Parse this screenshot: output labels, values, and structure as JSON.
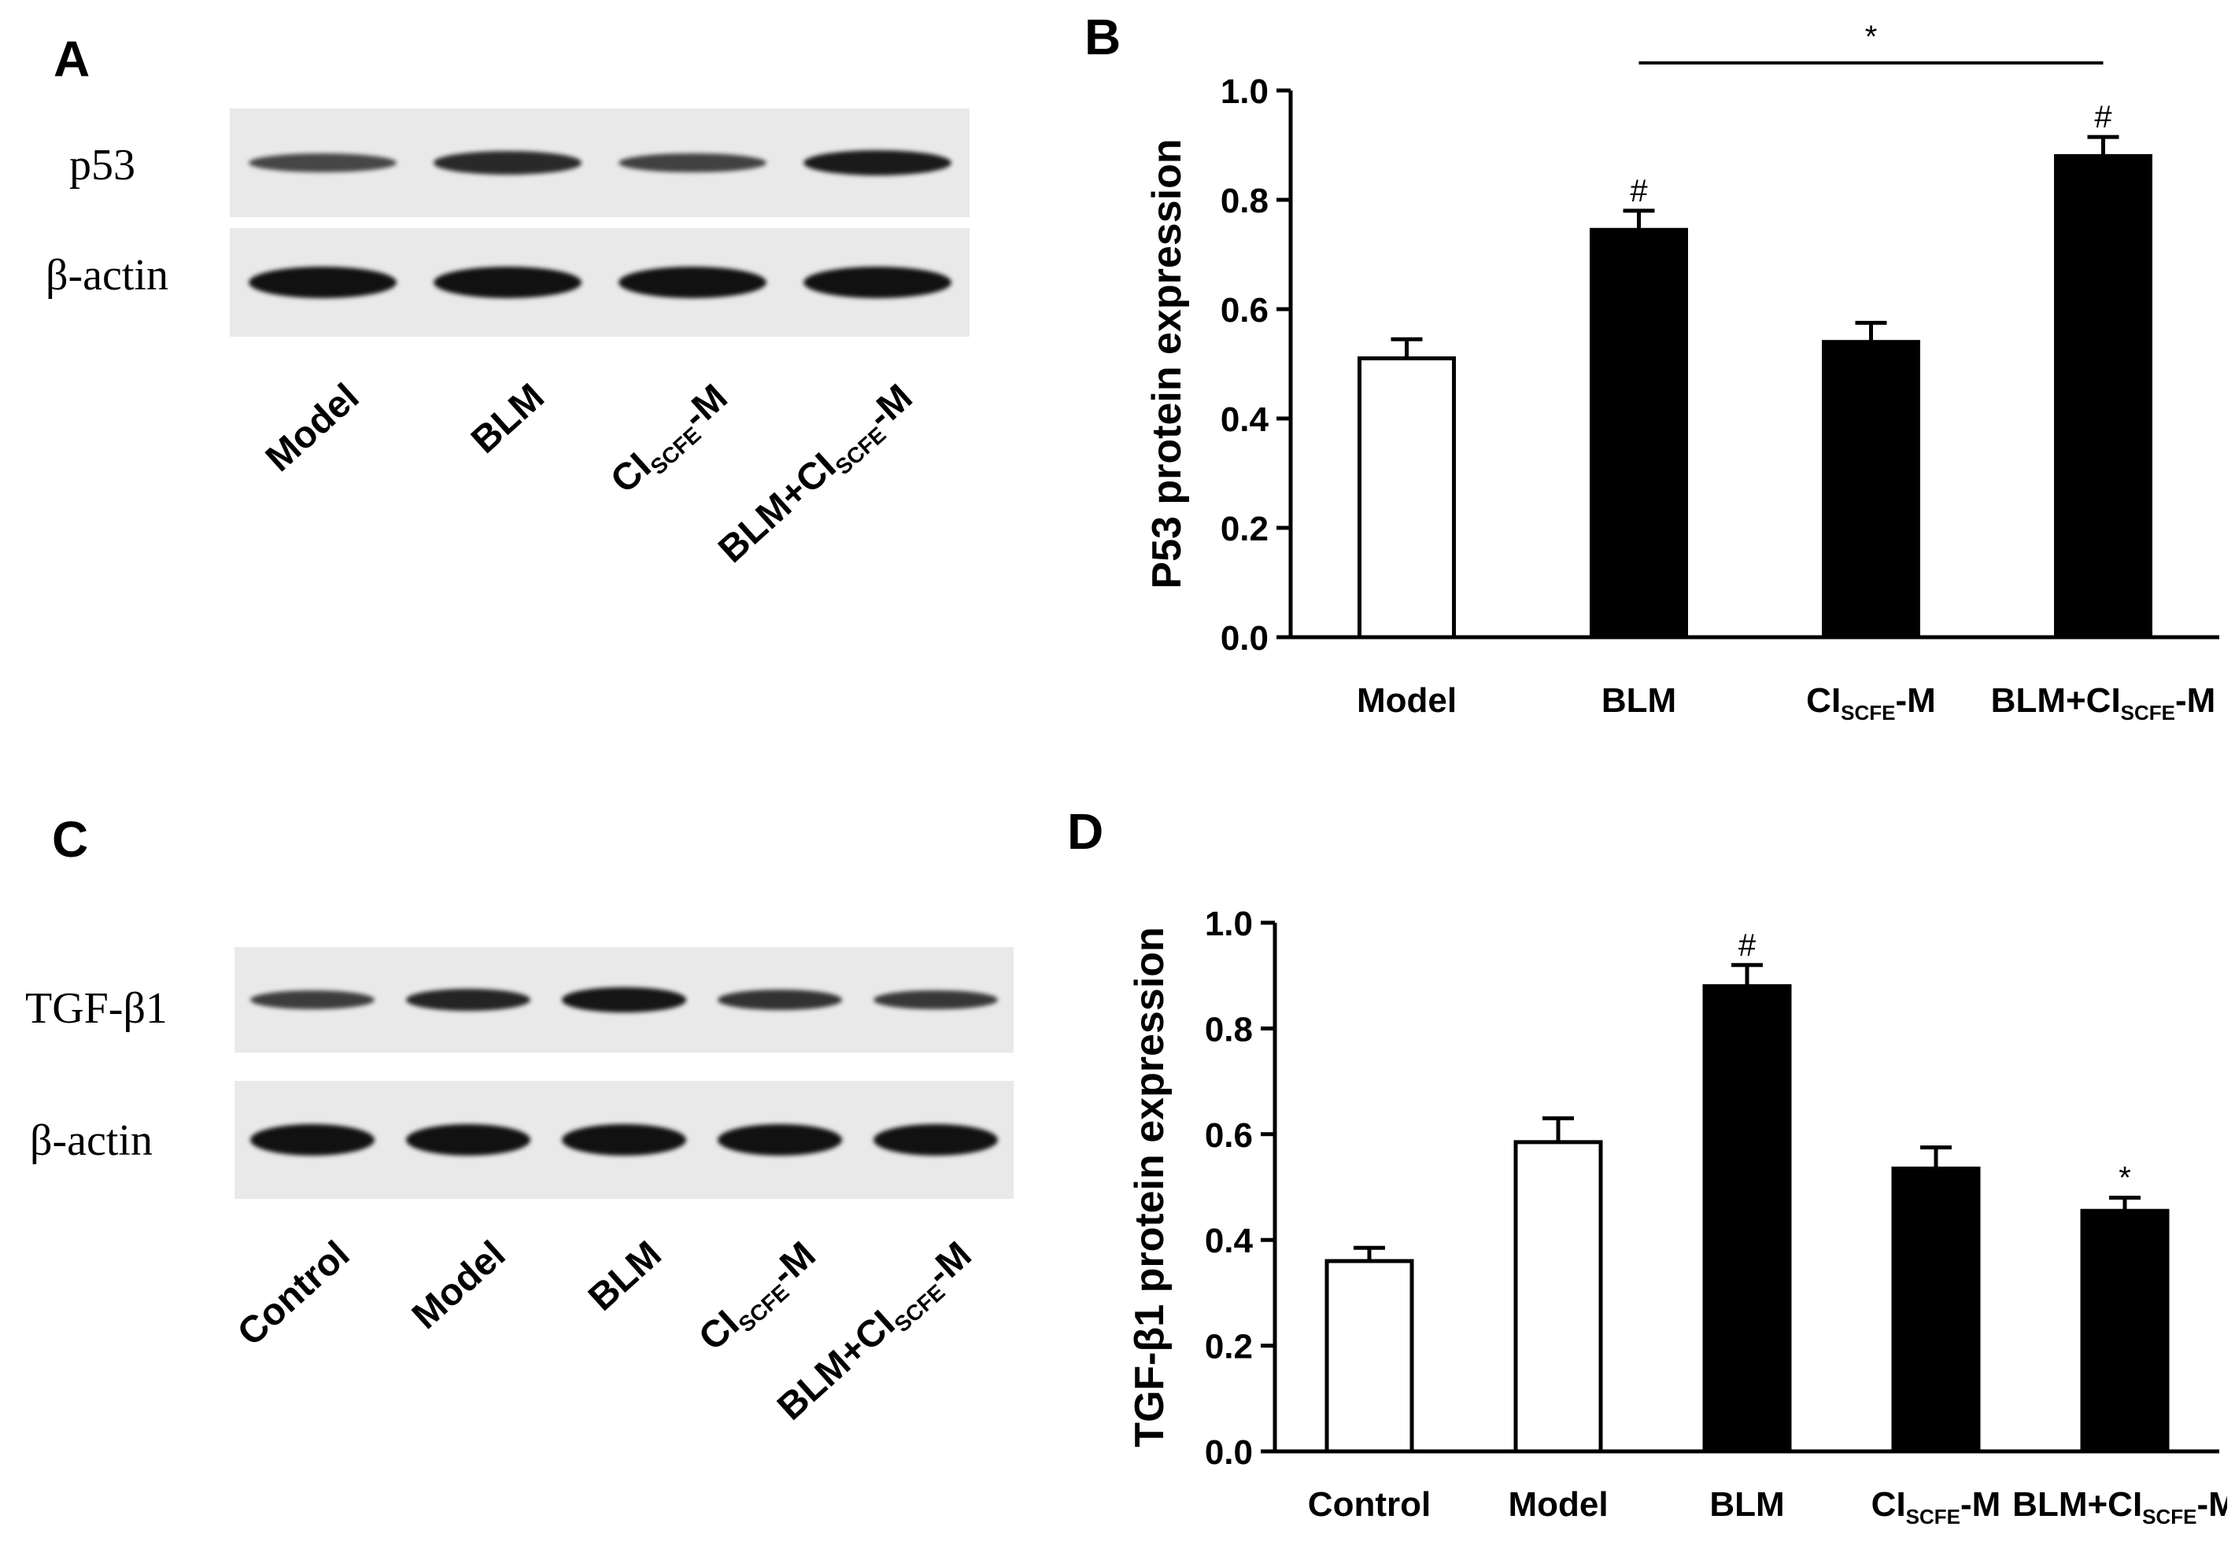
{
  "panels": {
    "a": {
      "letter": "A"
    },
    "b": {
      "letter": "B"
    },
    "c": {
      "letter": "C"
    },
    "d": {
      "letter": "D"
    }
  },
  "blot_a": {
    "rows": [
      "p53",
      "β-actin"
    ],
    "lanes": [
      {
        "main": "Model",
        "sub": "",
        "tail": ""
      },
      {
        "main": "BLM",
        "sub": "",
        "tail": ""
      },
      {
        "main": "CI",
        "sub": "SCFE",
        "tail": "-M"
      },
      {
        "main": "BLM+CI",
        "sub": "SCFE",
        "tail": "-M"
      }
    ],
    "band_intensity": {
      "p53": [
        0.45,
        0.75,
        0.5,
        0.9
      ],
      "β-actin": [
        1,
        1,
        1,
        1
      ]
    }
  },
  "blot_c": {
    "rows": [
      "TGF-β1",
      "β-actin"
    ],
    "lanes": [
      {
        "main": "Control",
        "sub": "",
        "tail": ""
      },
      {
        "main": "Model",
        "sub": "",
        "tail": ""
      },
      {
        "main": "BLM",
        "sub": "",
        "tail": ""
      },
      {
        "main": "CI",
        "sub": "SCFE",
        "tail": "-M"
      },
      {
        "main": "BLM+CI",
        "sub": "SCFE",
        "tail": "-M"
      }
    ],
    "band_intensity": {
      "TGF-β1": [
        0.55,
        0.8,
        0.95,
        0.65,
        0.6
      ],
      "β-actin": [
        1,
        1,
        1,
        1,
        1
      ]
    }
  },
  "chart_data": [
    {
      "panel": "B",
      "type": "bar",
      "ylabel": "P53 protein expression",
      "ylim": [
        0,
        1.0
      ],
      "yticks": [
        "0.0",
        "0.2",
        "0.4",
        "0.6",
        "0.8",
        "1.0"
      ],
      "categories": [
        {
          "main": "Model",
          "sub": "",
          "tail": ""
        },
        {
          "main": "BLM",
          "sub": "",
          "tail": ""
        },
        {
          "main": "CI",
          "sub": "SCFE",
          "tail": "-M"
        },
        {
          "main": "BLM+CI",
          "sub": "SCFE",
          "tail": "-M"
        }
      ],
      "values": [
        0.51,
        0.745,
        0.54,
        0.88
      ],
      "errors": [
        0.035,
        0.035,
        0.035,
        0.035
      ],
      "fills": [
        "#ffffff",
        "#000000",
        "#000000",
        "#000000"
      ],
      "annotations": [
        "",
        "#",
        "",
        "#"
      ],
      "bracket": {
        "from": 1,
        "to": 3,
        "label": "*"
      }
    },
    {
      "panel": "D",
      "type": "bar",
      "ylabel": "TGF-β1 protein expression",
      "ylim": [
        0,
        1.0
      ],
      "yticks": [
        "0.0",
        "0.2",
        "0.4",
        "0.6",
        "0.8",
        "1.0"
      ],
      "categories": [
        {
          "main": "Control",
          "sub": "",
          "tail": ""
        },
        {
          "main": "Model",
          "sub": "",
          "tail": ""
        },
        {
          "main": "BLM",
          "sub": "",
          "tail": ""
        },
        {
          "main": "CI",
          "sub": "SCFE",
          "tail": "-M"
        },
        {
          "main": "BLM+CI",
          "sub": "SCFE",
          "tail": "-M"
        }
      ],
      "values": [
        0.36,
        0.585,
        0.88,
        0.535,
        0.455
      ],
      "errors": [
        0.025,
        0.045,
        0.04,
        0.04,
        0.025
      ],
      "fills": [
        "#ffffff",
        "#ffffff",
        "#000000",
        "#000000",
        "#000000"
      ],
      "annotations": [
        "",
        "",
        "#",
        "",
        "*"
      ]
    }
  ]
}
